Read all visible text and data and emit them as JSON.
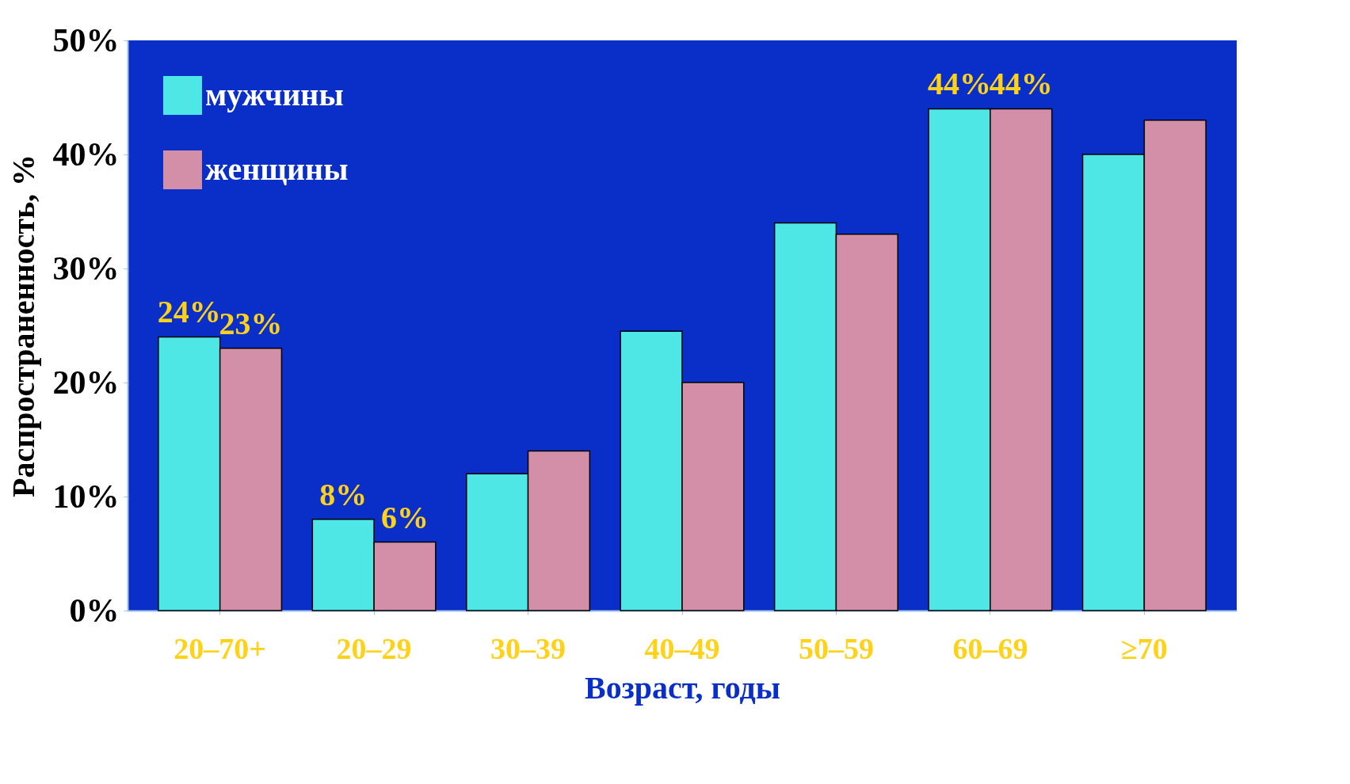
{
  "chart_data": {
    "type": "bar",
    "xlabel": "Возраст, годы",
    "ylabel": "Распространенность, %",
    "categories": [
      "20–70+",
      "20–29",
      "30–39",
      "40–49",
      "50–59",
      "60–69",
      "≥70"
    ],
    "series": [
      {
        "name": "мужчины",
        "color": "#4fe6e6",
        "values": [
          24,
          8,
          12,
          24.5,
          34,
          44,
          40
        ],
        "value_labels": [
          "24%",
          "8%",
          null,
          null,
          null,
          "44%",
          null
        ]
      },
      {
        "name": "женщины",
        "color": "#d48fa8",
        "values": [
          23,
          6,
          14,
          20,
          33,
          44,
          43
        ],
        "value_labels": [
          "23%",
          "6%",
          null,
          null,
          null,
          "44%",
          null
        ]
      }
    ],
    "ylim": [
      0,
      50
    ],
    "yticks": [
      {
        "value": 0,
        "label": "0%"
      },
      {
        "value": 10,
        "label": "10%"
      },
      {
        "value": 20,
        "label": "20%"
      },
      {
        "value": 30,
        "label": "30%"
      },
      {
        "value": 40,
        "label": "40%"
      },
      {
        "value": 50,
        "label": "50%"
      }
    ],
    "legend": "top left",
    "grid": false
  }
}
